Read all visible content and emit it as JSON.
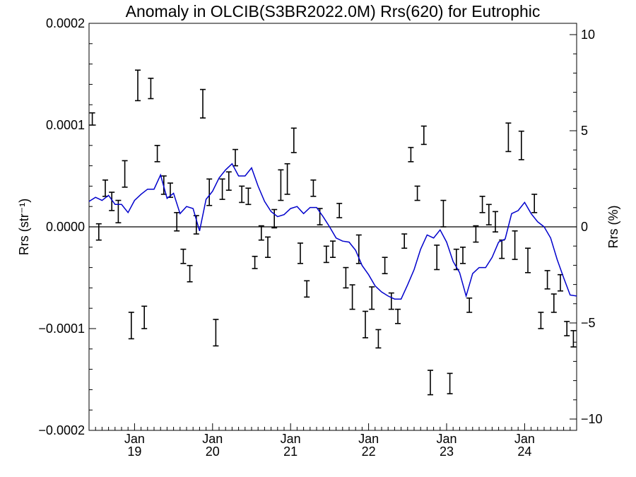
{
  "chart_data": {
    "type": "line",
    "title": "Anomaly in OLCIB(S3BR2022.0M) Rrs(620) for Eutrophic",
    "ylabel_left": "Rrs (str⁻¹)",
    "ylabel_right": "Rrs (%)",
    "xlabel": "",
    "x_unit": "month index from Jun 2018",
    "xlim": [
      0,
      75
    ],
    "ylim_left": [
      -0.0002,
      0.0002
    ],
    "ylim_right": [
      -10.5,
      10.5
    ],
    "left_ticks": [
      "0.0002",
      "0.0001",
      "0.0000",
      "−0.0001",
      "−0.0002"
    ],
    "left_tick_values": [
      0.0002,
      0.0001,
      0.0,
      -0.0001,
      -0.0002
    ],
    "right_ticks": [
      "10",
      "5",
      "0",
      "−5",
      "−10"
    ],
    "right_tick_values": [
      10,
      5,
      0,
      -5,
      -10
    ],
    "x_ticks": [
      {
        "month": "Jan",
        "year": "19",
        "x": 7
      },
      {
        "month": "Jan",
        "year": "20",
        "x": 19
      },
      {
        "month": "Jan",
        "year": "21",
        "x": 31
      },
      {
        "month": "Jan",
        "year": "22",
        "x": 43
      },
      {
        "month": "Jan",
        "year": "23",
        "x": 55
      },
      {
        "month": "Jan",
        "year": "24",
        "x": 67
      }
    ],
    "zero_line": 0,
    "series": [
      {
        "kind": "line",
        "color": "#0000cc",
        "x": [
          0,
          1,
          2,
          3,
          4,
          5,
          6,
          7,
          8,
          9,
          10,
          11,
          12,
          13,
          14,
          15,
          16,
          17,
          18,
          19,
          20,
          21,
          22,
          23,
          24,
          25,
          26,
          27,
          28,
          29,
          30,
          31,
          32,
          33,
          34,
          35,
          36,
          37,
          38,
          39,
          40,
          41,
          42,
          43,
          44,
          45,
          46,
          47,
          48,
          49,
          50,
          51,
          52,
          53,
          54,
          55,
          56,
          57,
          58,
          59,
          60,
          61,
          62,
          63,
          64,
          65,
          66,
          67,
          68,
          69,
          70,
          71,
          72,
          73,
          74,
          75
        ],
        "y": [
          2.5e-05,
          2.9e-05,
          2.6e-05,
          3.1e-05,
          2.2e-05,
          2.2e-05,
          1.4e-05,
          2.6e-05,
          3.2e-05,
          3.7e-05,
          3.7e-05,
          5.1e-05,
          2.8e-05,
          3.3e-05,
          1.3e-05,
          2e-05,
          1.8e-05,
          -4e-06,
          2.7e-05,
          3.5e-05,
          4.8e-05,
          5.6e-05,
          6.2e-05,
          5e-05,
          5e-05,
          5.8e-05,
          4e-05,
          2.5e-05,
          1.5e-05,
          1e-05,
          1.2e-05,
          1.8e-05,
          2e-05,
          1.3e-05,
          1.9e-05,
          1.9e-05,
          1e-05,
          0.0,
          -1.1e-05,
          -1.4e-05,
          -1.5e-05,
          -2.3e-05,
          -3.8e-05,
          -4.7e-05,
          -5.8e-05,
          -6.4e-05,
          -6.8e-05,
          -7.1e-05,
          -7.1e-05,
          -5.7e-05,
          -4.2e-05,
          -2.2e-05,
          -8e-06,
          -1.1e-05,
          -3e-06,
          -1.5e-05,
          -3.4e-05,
          -4.5e-05,
          -6.8e-05,
          -4.6e-05,
          -4e-05,
          -4e-05,
          -3e-05,
          -1.5e-05,
          -1.2e-05,
          1.3e-05,
          1.6e-05,
          2.4e-05,
          1.3e-05,
          5e-06,
          0.0,
          -1.1e-05,
          -3.2e-05,
          -5e-05,
          -6.7e-05,
          -6.8e-05
        ]
      },
      {
        "kind": "errorbars",
        "color": "#000000",
        "points": [
          {
            "x": 0.5,
            "y": 0.000106,
            "err": 6e-06
          },
          {
            "x": 1.5,
            "y": -5e-06,
            "err": 8e-06
          },
          {
            "x": 2.5,
            "y": 3.8e-05,
            "err": 8e-06
          },
          {
            "x": 3.5,
            "y": 2.5e-05,
            "err": 9e-06
          },
          {
            "x": 4.5,
            "y": 1.5e-05,
            "err": 1.1e-05
          },
          {
            "x": 5.5,
            "y": 5.2e-05,
            "err": 1.3e-05
          },
          {
            "x": 6.5,
            "y": -9.7e-05,
            "err": 1.3e-05
          },
          {
            "x": 7.5,
            "y": 0.000139,
            "err": 1.5e-05
          },
          {
            "x": 8.5,
            "y": -8.9e-05,
            "err": 1.1e-05
          },
          {
            "x": 9.5,
            "y": 0.000136,
            "err": 1e-05
          },
          {
            "x": 10.5,
            "y": 7.2e-05,
            "err": 8e-06
          },
          {
            "x": 11.5,
            "y": 4.1e-05,
            "err": 9e-06
          },
          {
            "x": 12.5,
            "y": 3.6e-05,
            "err": 7e-06
          },
          {
            "x": 13.5,
            "y": 5e-06,
            "err": 9e-06
          },
          {
            "x": 14.5,
            "y": -2.9e-05,
            "err": 7e-06
          },
          {
            "x": 15.5,
            "y": -4.6e-05,
            "err": 8e-06
          },
          {
            "x": 16.5,
            "y": 2e-06,
            "err": 9e-06
          },
          {
            "x": 17.5,
            "y": 0.000121,
            "err": 1.4e-05
          },
          {
            "x": 18.5,
            "y": 3.4e-05,
            "err": 1.3e-05
          },
          {
            "x": 19.5,
            "y": -0.000104,
            "err": 1.3e-05
          },
          {
            "x": 20.5,
            "y": 3.7e-05,
            "err": 1e-05
          },
          {
            "x": 21.5,
            "y": 4.5e-05,
            "err": 9e-06
          },
          {
            "x": 22.5,
            "y": 6.8e-05,
            "err": 8e-06
          },
          {
            "x": 23.5,
            "y": 3.2e-05,
            "err": 8e-06
          },
          {
            "x": 24.5,
            "y": 3e-05,
            "err": 8e-06
          },
          {
            "x": 25.5,
            "y": -3.5e-05,
            "err": 6e-06
          },
          {
            "x": 26.5,
            "y": -6e-06,
            "err": 7e-06
          },
          {
            "x": 27.5,
            "y": -2e-05,
            "err": 1e-05
          },
          {
            "x": 28.5,
            "y": 8e-06,
            "err": 9e-06
          },
          {
            "x": 29.5,
            "y": 4.1e-05,
            "err": 1.5e-05
          },
          {
            "x": 30.5,
            "y": 4.7e-05,
            "err": 1.5e-05
          },
          {
            "x": 31.5,
            "y": 8.5e-05,
            "err": 1.2e-05
          },
          {
            "x": 32.5,
            "y": -2.6e-05,
            "err": 1e-05
          },
          {
            "x": 33.5,
            "y": -6.1e-05,
            "err": 8e-06
          },
          {
            "x": 34.5,
            "y": 3.8e-05,
            "err": 8e-06
          },
          {
            "x": 35.5,
            "y": 1e-05,
            "err": 8e-06
          },
          {
            "x": 36.5,
            "y": -2.7e-05,
            "err": 8e-06
          },
          {
            "x": 37.5,
            "y": -2.2e-05,
            "err": 8e-06
          },
          {
            "x": 38.5,
            "y": 1.6e-05,
            "err": 7e-06
          },
          {
            "x": 39.5,
            "y": -5e-05,
            "err": 1e-05
          },
          {
            "x": 40.5,
            "y": -6.9e-05,
            "err": 1.2e-05
          },
          {
            "x": 41.5,
            "y": -2.2e-05,
            "err": 1.4e-05
          },
          {
            "x": 42.5,
            "y": -9.6e-05,
            "err": 1.3e-05
          },
          {
            "x": 43.5,
            "y": -7e-05,
            "err": 1.1e-05
          },
          {
            "x": 44.5,
            "y": -0.00011,
            "err": 9e-06
          },
          {
            "x": 45.5,
            "y": -3.8e-05,
            "err": 8e-06
          },
          {
            "x": 46.5,
            "y": -7.3e-05,
            "err": 8e-06
          },
          {
            "x": 47.5,
            "y": -8.8e-05,
            "err": 7e-06
          },
          {
            "x": 48.5,
            "y": -1.4e-05,
            "err": 7e-06
          },
          {
            "x": 49.5,
            "y": 7.1e-05,
            "err": 7e-06
          },
          {
            "x": 50.5,
            "y": 3.3e-05,
            "err": 7e-06
          },
          {
            "x": 51.5,
            "y": 9e-05,
            "err": 9e-06
          },
          {
            "x": 52.5,
            "y": -0.000153,
            "err": 1.2e-05
          },
          {
            "x": 53.5,
            "y": -3e-05,
            "err": 1.2e-05
          },
          {
            "x": 54.5,
            "y": 1.3e-05,
            "err": 1.3e-05
          },
          {
            "x": 55.5,
            "y": -0.000154,
            "err": 1e-05
          },
          {
            "x": 56.5,
            "y": -3.2e-05,
            "err": 1e-05
          },
          {
            "x": 57.5,
            "y": -2.8e-05,
            "err": 8e-06
          },
          {
            "x": 58.5,
            "y": -7.7e-05,
            "err": 7e-06
          },
          {
            "x": 59.5,
            "y": -7e-06,
            "err": 8e-06
          },
          {
            "x": 60.5,
            "y": 2.2e-05,
            "err": 8e-06
          },
          {
            "x": 61.5,
            "y": 1.2e-05,
            "err": 1e-05
          },
          {
            "x": 62.5,
            "y": 5e-06,
            "err": 1e-05
          },
          {
            "x": 63.5,
            "y": -2.2e-05,
            "err": 9e-06
          },
          {
            "x": 64.5,
            "y": 8.8e-05,
            "err": 1.4e-05
          },
          {
            "x": 65.5,
            "y": -1.8e-05,
            "err": 1.4e-05
          },
          {
            "x": 66.5,
            "y": 8e-05,
            "err": 1.4e-05
          },
          {
            "x": 67.5,
            "y": -3.3e-05,
            "err": 1.2e-05
          },
          {
            "x": 68.5,
            "y": 2.3e-05,
            "err": 9e-06
          },
          {
            "x": 69.5,
            "y": -9.2e-05,
            "err": 8e-06
          },
          {
            "x": 70.5,
            "y": -5.2e-05,
            "err": 9e-06
          },
          {
            "x": 71.5,
            "y": -7.5e-05,
            "err": 9e-06
          },
          {
            "x": 72.5,
            "y": -5.5e-05,
            "err": 8e-06
          },
          {
            "x": 73.5,
            "y": -0.0001,
            "err": 7e-06
          },
          {
            "x": 74.5,
            "y": -0.00011,
            "err": 8e-06
          }
        ]
      }
    ]
  }
}
